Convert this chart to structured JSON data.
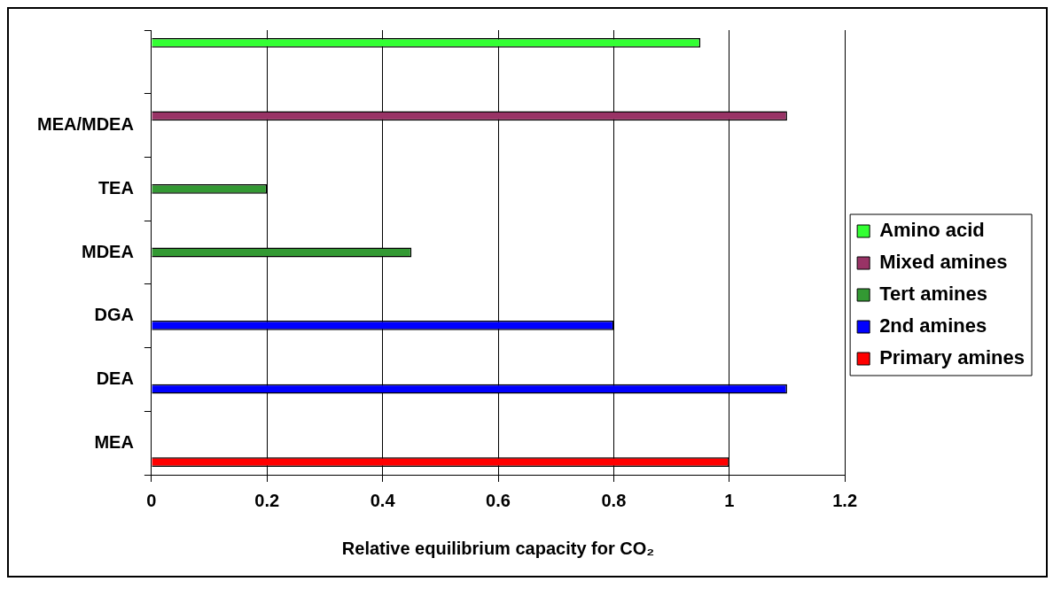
{
  "chart_data": {
    "type": "bar",
    "orientation": "horizontal",
    "categories": [
      null,
      "MEA/MDEA",
      "TEA",
      "MDEA",
      "DGA",
      "DEA",
      "MEA"
    ],
    "series": [
      {
        "name": "Amino acid",
        "color": "#33ff33",
        "values": [
          0.95,
          null,
          null,
          null,
          null,
          null,
          null
        ]
      },
      {
        "name": "Mixed amines",
        "color": "#993366",
        "values": [
          null,
          1.1,
          null,
          null,
          null,
          null,
          null
        ]
      },
      {
        "name": "Tert amines",
        "color": "#339933",
        "values": [
          null,
          null,
          0.2,
          0.45,
          null,
          null,
          null
        ]
      },
      {
        "name": "2nd amines",
        "color": "#0000ff",
        "values": [
          null,
          null,
          null,
          null,
          0.8,
          1.1,
          null
        ]
      },
      {
        "name": "Primary amines",
        "color": "#ff0000",
        "values": [
          null,
          null,
          null,
          null,
          null,
          null,
          1.0
        ]
      }
    ],
    "xlabel": "Relative equilibrium capacity for CO₂",
    "xlim": [
      0,
      1.2
    ],
    "xticks": [
      0,
      0.2,
      0.4,
      0.6,
      0.8,
      1,
      1.2
    ],
    "grid": "x",
    "legend": "right"
  }
}
